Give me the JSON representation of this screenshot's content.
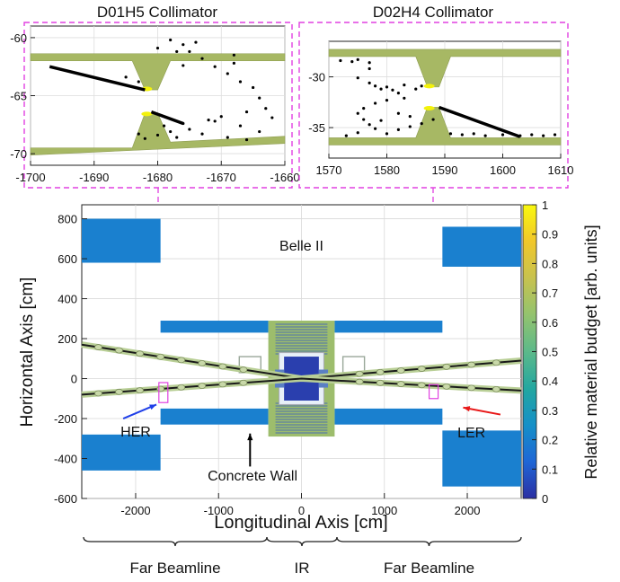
{
  "chart_data": [
    {
      "type": "heatmap",
      "title": "",
      "xlabel": "Longitudinal Axis [cm]",
      "ylabel": "Horizontal Axis [cm]",
      "xlim": [
        -2650,
        2650
      ],
      "ylim": [
        -600,
        870
      ],
      "x_ticks": [
        -2000,
        -1000,
        0,
        1000,
        2000
      ],
      "y_ticks": [
        -600,
        -400,
        -200,
        0,
        200,
        400,
        600,
        800
      ],
      "colorbar": {
        "label": "Relative material budget [arb. units]",
        "range": [
          0,
          1
        ],
        "ticks": [
          "0",
          "0.1",
          "0.2",
          "0.3",
          "0.4",
          "0.5",
          "0.6",
          "0.7",
          "0.8",
          "0.9",
          "1"
        ],
        "colors": [
          "#2b2fa3",
          "#1f66d6",
          "#1590c8",
          "#23a7a0",
          "#5cb98a",
          "#93c36e",
          "#c7c24f",
          "#f1c72a",
          "#f9f80f"
        ]
      },
      "annotations": {
        "detector": "Belle II",
        "her_label": "HER",
        "ler_label": "LER",
        "wall_label": "Concrete Wall",
        "regions": [
          "Far Beamline",
          "IR",
          "Far Beamline"
        ]
      },
      "arrow_colors": {
        "her": "#1f3fe8",
        "ler": "#e81818",
        "wall": "#000000"
      },
      "walls": [
        {
          "x": [
            -2650,
            -1700
          ],
          "y": [
            580,
            800
          ]
        },
        {
          "x": [
            -1700,
            -400
          ],
          "y": [
            230,
            290
          ]
        },
        {
          "x": [
            -2650,
            -1700
          ],
          "y": [
            -280,
            -460
          ]
        },
        {
          "x": [
            -1700,
            -400
          ],
          "y": [
            -150,
            -230
          ]
        },
        {
          "x": [
            400,
            1700
          ],
          "y": [
            230,
            290
          ]
        },
        {
          "x": [
            1700,
            2650
          ],
          "y": [
            560,
            760
          ]
        },
        {
          "x": [
            400,
            1700
          ],
          "y": [
            -150,
            -230
          ]
        },
        {
          "x": [
            1700,
            2650
          ],
          "y": [
            -260,
            -540
          ]
        }
      ],
      "beamlines": [
        {
          "name": "HER",
          "points": [
            [
              -2650,
              170
            ],
            [
              0,
              0
            ],
            [
              2650,
              90
            ]
          ]
        },
        {
          "name": "LER",
          "points": [
            [
              -2650,
              -80
            ],
            [
              0,
              0
            ],
            [
              2650,
              -60
            ]
          ]
        }
      ],
      "colors": {
        "wall": "#1a80cf",
        "green": "#9dbd6c",
        "detector_core": "#2a3fae"
      }
    },
    {
      "type": "scatter",
      "title": "D01H5 Collimator",
      "xlim": [
        -1700,
        -1660
      ],
      "ylim": [
        -71,
        -59
      ],
      "x_ticks": [
        -1700,
        -1690,
        -1680,
        -1670,
        -1660
      ],
      "y_ticks": [
        -70,
        -65,
        -60
      ],
      "upper_jaw": [
        [
          -1700,
          -62
        ],
        [
          -1684,
          -62
        ],
        [
          -1682,
          -64.5
        ],
        [
          -1680,
          -64.5
        ],
        [
          -1678,
          -62
        ],
        [
          -1660,
          -62
        ]
      ],
      "lower_jaw": [
        [
          -1700,
          -69.5
        ],
        [
          -1684,
          -69.5
        ],
        [
          -1682,
          -66.5
        ],
        [
          -1680,
          -66.5
        ],
        [
          -1678,
          -69
        ],
        [
          -1660,
          -68.5
        ]
      ],
      "hit_line": [
        [
          -1697,
          -62.5
        ],
        [
          -1682,
          -64.5
        ]
      ],
      "hit_line_lower": [
        [
          -1681,
          -66.4
        ],
        [
          -1676,
          -67.4
        ]
      ],
      "points": [
        [
          -1685,
          -63.4
        ],
        [
          -1683,
          -63.8
        ],
        [
          -1678,
          -60.2
        ],
        [
          -1676,
          -60.6
        ],
        [
          -1675,
          -61.2
        ],
        [
          -1673,
          -61.8
        ],
        [
          -1671,
          -62.5
        ],
        [
          -1669,
          -63.1
        ],
        [
          -1667,
          -63.8
        ],
        [
          -1668,
          -62.2
        ],
        [
          -1665,
          -64.3
        ],
        [
          -1664,
          -65.2
        ],
        [
          -1663,
          -66.1
        ],
        [
          -1662,
          -66.9
        ],
        [
          -1666,
          -66.4
        ],
        [
          -1670,
          -66.8
        ],
        [
          -1672,
          -67.1
        ],
        [
          -1667,
          -67.6
        ],
        [
          -1664,
          -68.1
        ],
        [
          -1675,
          -67.9
        ],
        [
          -1678,
          -68.1
        ],
        [
          -1680,
          -68.4
        ],
        [
          -1677,
          -68.6
        ],
        [
          -1673,
          -68.3
        ],
        [
          -1669,
          -68.6
        ],
        [
          -1666,
          -68.8
        ],
        [
          -1682,
          -68.7
        ],
        [
          -1676,
          -67.4
        ],
        [
          -1680,
          -60.9
        ],
        [
          -1677,
          -61.2
        ],
        [
          -1676,
          -62.4
        ],
        [
          -1679,
          -67.6
        ],
        [
          -1671,
          -67.2
        ],
        [
          -1668,
          -61.5
        ],
        [
          -1674,
          -60.4
        ],
        [
          -1683,
          -68.3
        ]
      ]
    },
    {
      "type": "scatter",
      "title": "D02H4 Collimator",
      "xlim": [
        1570,
        1610
      ],
      "ylim": [
        -38,
        -26.5
      ],
      "x_ticks": [
        1570,
        1580,
        1590,
        1600,
        1610
      ],
      "y_ticks": [
        -35,
        -30
      ],
      "upper_jaw": [
        [
          1570,
          -28
        ],
        [
          1585,
          -28
        ],
        [
          1587,
          -31
        ],
        [
          1589,
          -31
        ],
        [
          1591,
          -28
        ],
        [
          1610,
          -28
        ]
      ],
      "lower_jaw": [
        [
          1570,
          -36
        ],
        [
          1585,
          -36
        ],
        [
          1587,
          -33
        ],
        [
          1589,
          -33
        ],
        [
          1591,
          -36
        ],
        [
          1610,
          -36
        ]
      ],
      "hit_line": [
        [
          1589,
          -33
        ],
        [
          1603,
          -35.9
        ]
      ],
      "points": [
        [
          1572,
          -28.4
        ],
        [
          1574,
          -28.5
        ],
        [
          1575,
          -28.3
        ],
        [
          1577,
          -28.6
        ],
        [
          1575,
          -30.1
        ],
        [
          1577,
          -30.6
        ],
        [
          1578,
          -30.9
        ],
        [
          1579,
          -31.2
        ],
        [
          1580,
          -31.0
        ],
        [
          1581,
          -31.3
        ],
        [
          1582,
          -31.6
        ],
        [
          1583,
          -30.8
        ],
        [
          1585,
          -31.2
        ],
        [
          1586,
          -30.9
        ],
        [
          1580,
          -32.3
        ],
        [
          1578,
          -32.6
        ],
        [
          1576,
          -33.1
        ],
        [
          1575,
          -33.6
        ],
        [
          1576,
          -34.2
        ],
        [
          1577,
          -34.7
        ],
        [
          1578,
          -35.1
        ],
        [
          1580,
          -35.6
        ],
        [
          1582,
          -35.2
        ],
        [
          1584,
          -34.9
        ],
        [
          1586,
          -34.6
        ],
        [
          1588,
          -34.2
        ],
        [
          1584,
          -33.9
        ],
        [
          1582,
          -33.6
        ],
        [
          1579,
          -34.3
        ],
        [
          1575,
          -35.5
        ],
        [
          1573,
          -35.8
        ],
        [
          1591,
          -35.6
        ],
        [
          1593,
          -35.7
        ],
        [
          1595,
          -35.6
        ],
        [
          1597,
          -35.8
        ],
        [
          1600,
          -35.7
        ],
        [
          1603,
          -35.8
        ],
        [
          1605,
          -35.7
        ],
        [
          1607,
          -35.8
        ],
        [
          1609,
          -35.7
        ],
        [
          1583,
          -32.1
        ],
        [
          1577,
          -29.2
        ]
      ]
    }
  ]
}
